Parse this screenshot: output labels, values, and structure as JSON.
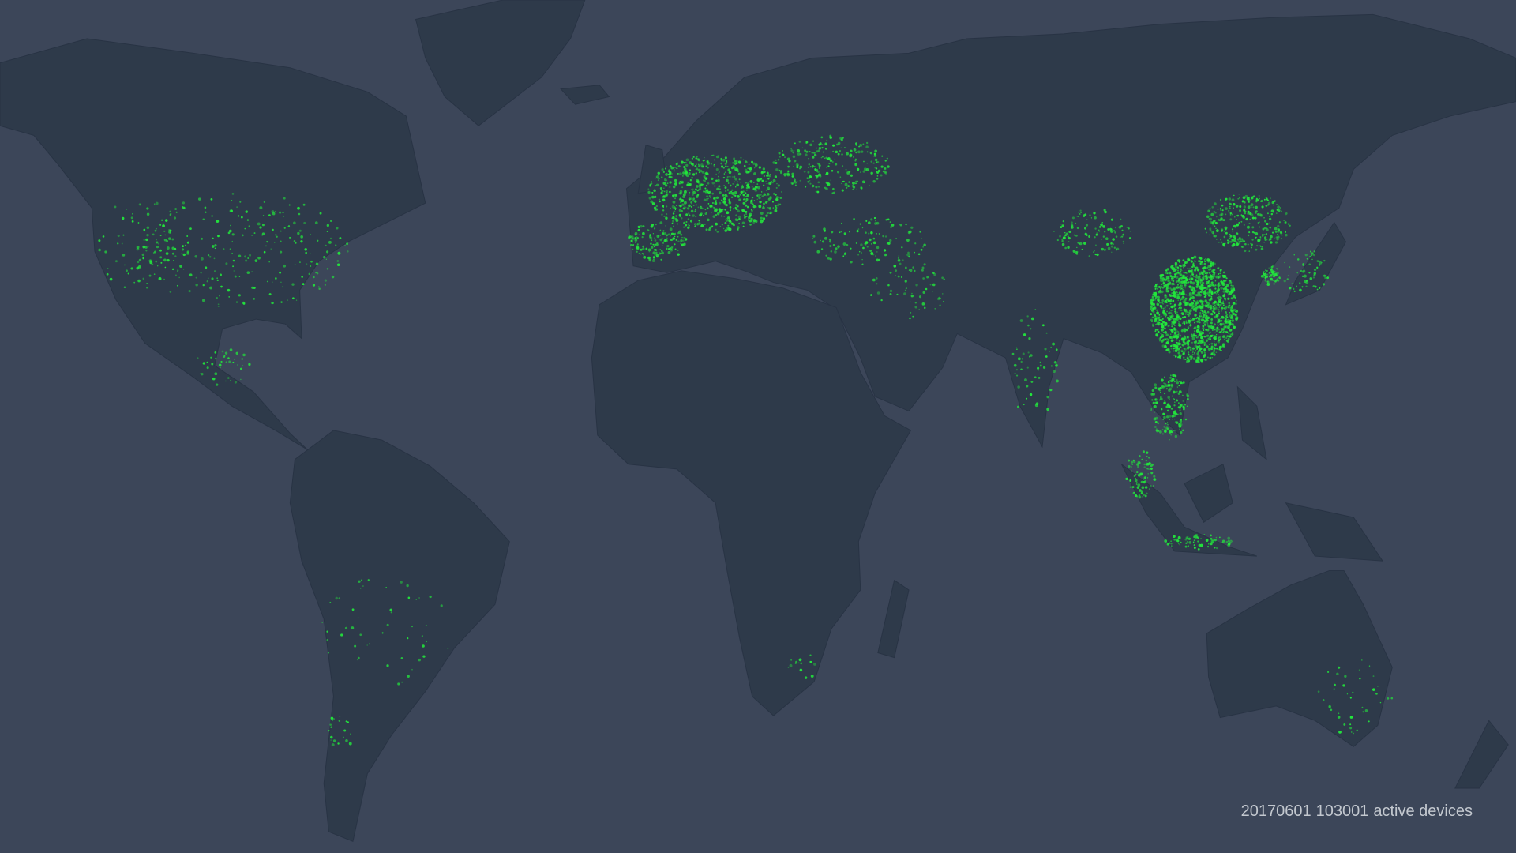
{
  "caption": {
    "date": "20170601",
    "count": "103001",
    "label": "active devices"
  },
  "colors": {
    "ocean": "#3c4659",
    "land": "#2e3a4a",
    "border": "#263140",
    "device_dot": "#22e83c"
  }
}
